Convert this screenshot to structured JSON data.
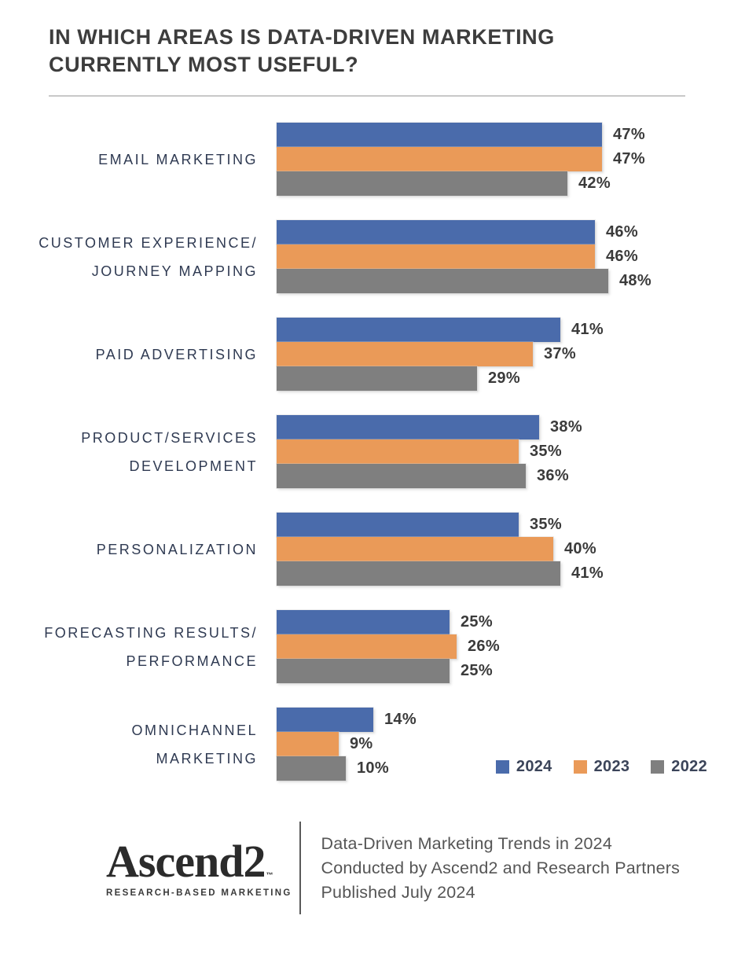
{
  "title": "IN WHICH AREAS IS DATA-DRIVEN MARKETING CURRENTLY MOST USEFUL?",
  "chart_data": {
    "type": "bar",
    "orientation": "horizontal",
    "title": "IN WHICH AREAS IS DATA-DRIVEN MARKETING CURRENTLY MOST USEFUL?",
    "unit": "%",
    "xlim": [
      0,
      50
    ],
    "grid": false,
    "legend_position": "bottom-right",
    "bar_label_style": "end-of-bar",
    "categories": [
      "EMAIL MARKETING",
      "CUSTOMER EXPERIENCE/\nJOURNEY MAPPING",
      "PAID ADVERTISING",
      "PRODUCT/SERVICES\nDEVELOPMENT",
      "PERSONALIZATION",
      "FORECASTING RESULTS/\nPERFORMANCE",
      "OMNICHANNEL MARKETING"
    ],
    "series": [
      {
        "name": "2024",
        "color": "#4a6bab",
        "values": [
          47,
          46,
          41,
          38,
          35,
          25,
          14
        ]
      },
      {
        "name": "2023",
        "color": "#ea9a58",
        "values": [
          47,
          46,
          37,
          35,
          40,
          26,
          9
        ]
      },
      {
        "name": "2022",
        "color": "#7f7f7f",
        "values": [
          42,
          48,
          29,
          36,
          41,
          25,
          10
        ]
      }
    ]
  },
  "colors": {
    "series_2024": "#4a6bab",
    "series_2023": "#ea9a58",
    "series_2022": "#7f7f7f",
    "title_text": "#3d3d3d",
    "category_text": "#2f3a52",
    "value_text": "#3b3b3b",
    "logo_accent": "#4a6fa8"
  },
  "footer": {
    "logo": {
      "name": "Ascend",
      "suffix": "2",
      "trademark": "™",
      "tagline": "RESEARCH-BASED MARKETING"
    },
    "lines": [
      "Data-Driven Marketing Trends in 2024",
      "Conducted by Ascend2 and Research Partners",
      "Published July 2024"
    ]
  }
}
